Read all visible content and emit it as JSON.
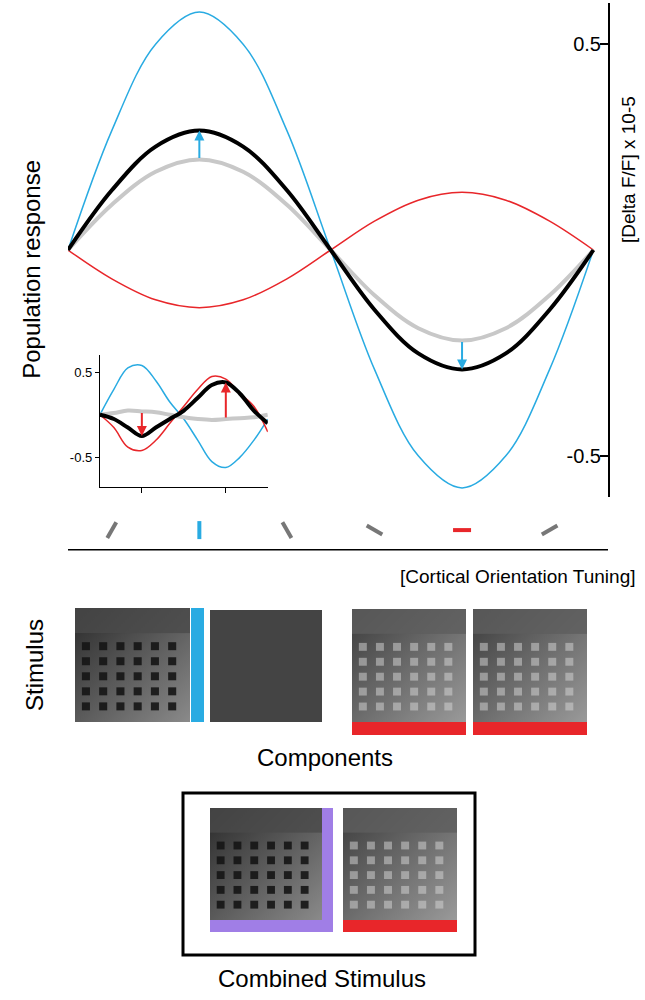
{
  "chart_data": [
    {
      "type": "line",
      "ylabel": "Population response",
      "unit_label": "[Delta F/F] x 10-5",
      "xlabel": "[Cortical Orientation Tuning]",
      "x": [
        0,
        15,
        30,
        45,
        60,
        75,
        90,
        105,
        120,
        135,
        150,
        165,
        180
      ],
      "series": [
        {
          "color": "#29abe2",
          "values": [
            0,
            0.29,
            0.5,
            0.578,
            0.5,
            0.29,
            0,
            -0.29,
            -0.5,
            -0.578,
            -0.5,
            -0.29,
            0
          ]
        },
        {
          "color": "#e8262a",
          "values": [
            0,
            -0.07,
            -0.121,
            -0.14,
            -0.121,
            -0.07,
            0,
            0.07,
            0.121,
            0.14,
            0.121,
            0.07,
            0
          ]
        },
        {
          "color": "#c8c8c8",
          "values": [
            0,
            0.11,
            0.19,
            0.22,
            0.19,
            0.11,
            0,
            -0.11,
            -0.19,
            -0.22,
            -0.19,
            -0.11,
            0
          ]
        },
        {
          "color": "#000000",
          "values": [
            0,
            0.145,
            0.251,
            0.29,
            0.251,
            0.145,
            0,
            -0.145,
            -0.251,
            -0.29,
            -0.251,
            -0.145,
            0
          ]
        }
      ],
      "xlim": [
        0,
        185
      ],
      "xticks": [
        15,
        45,
        75,
        105,
        135,
        165
      ],
      "ylim": [
        -0.6,
        0.6
      ],
      "yticks": [
        -0.5,
        0.5
      ],
      "tick_labels": "y"
    },
    {
      "type": "line",
      "x": [
        0,
        15,
        30,
        45,
        60,
        75,
        90,
        105,
        120,
        135,
        150,
        165,
        180
      ],
      "series": [
        {
          "color": "#29abe2",
          "values": [
            0,
            0.3,
            0.55,
            0.58,
            0.4,
            0.15,
            -0.05,
            -0.3,
            -0.55,
            -0.62,
            -0.5,
            -0.3,
            -0.05
          ]
        },
        {
          "color": "#e8262a",
          "values": [
            0,
            -0.15,
            -0.38,
            -0.42,
            -0.3,
            -0.1,
            0.1,
            0.3,
            0.45,
            0.42,
            0.25,
            0.1,
            -0.2
          ]
        },
        {
          "color": "#c8c8c8",
          "values": [
            0,
            0.02,
            0.05,
            0.04,
            0.03,
            0,
            -0.03,
            -0.05,
            -0.06,
            -0.05,
            -0.04,
            -0.03,
            0
          ]
        },
        {
          "color": "#000000",
          "values": [
            0,
            -0.05,
            -0.15,
            -0.25,
            -0.15,
            -0.05,
            0.05,
            0.2,
            0.35,
            0.38,
            0.25,
            0.05,
            -0.1
          ]
        }
      ],
      "xlim": [
        0,
        180
      ],
      "xticks": [
        45,
        135
      ],
      "ylim": [
        -0.85,
        0.7
      ],
      "yticks": [
        -0.5,
        0.5
      ],
      "tick_labels": "y"
    }
  ],
  "stimulus": {
    "row_label": "Stimulus",
    "components_label": "Components",
    "combined_label": "Combined Stimulus"
  }
}
